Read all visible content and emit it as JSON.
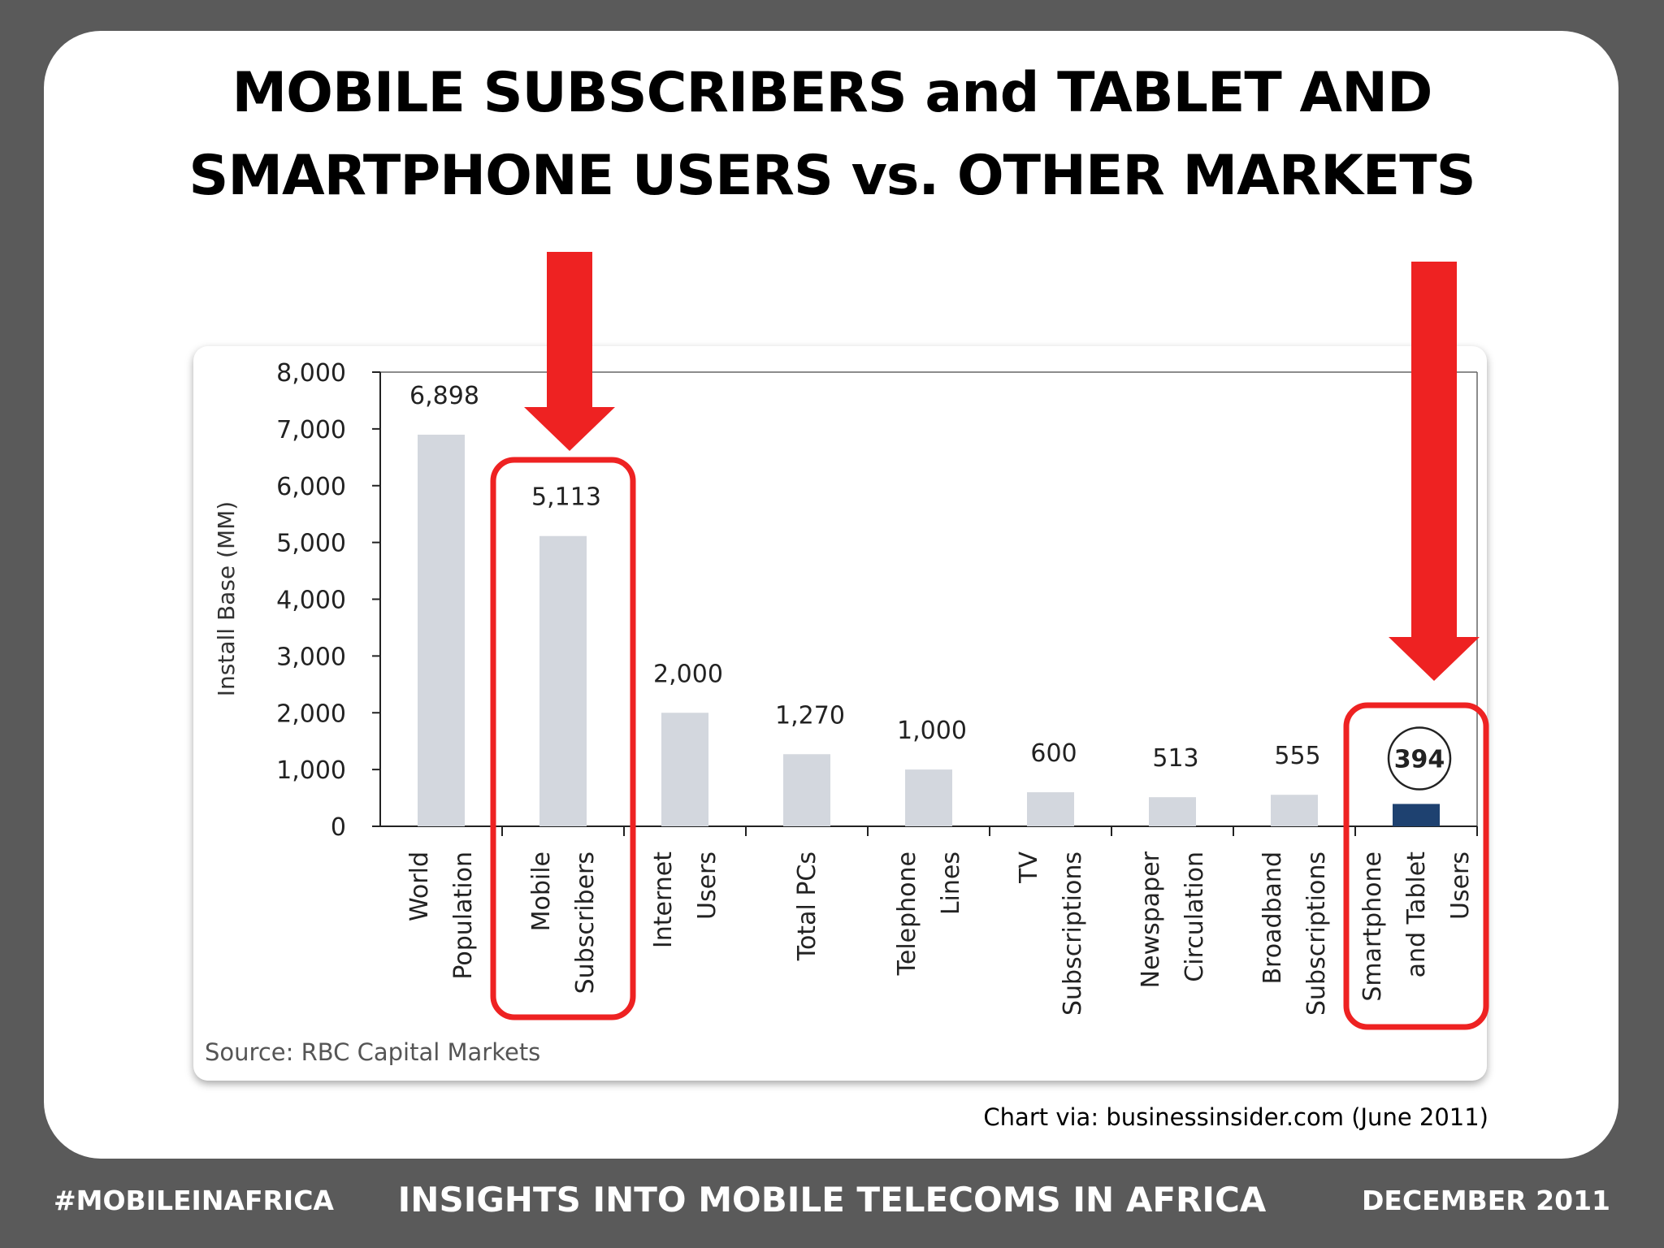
{
  "slide": {
    "title_line1": "MOBILE SUBSCRIBERS and TABLET AND",
    "title_line2": "SMARTPHONE USERS vs. OTHER MARKETS",
    "credit": "Chart via: businessinsider.com (June 2011)"
  },
  "footer": {
    "left": "#MOBILEINAFRICA",
    "center": "INSIGHTS INTO MOBILE TELECOMS IN AFRICA",
    "right": "DECEMBER 2011"
  },
  "chart_data": {
    "type": "bar",
    "ylabel": "Install Base (MM)",
    "ylim": [
      0,
      8000
    ],
    "yticks": [
      "0",
      "1,000",
      "2,000",
      "3,000",
      "4,000",
      "5,000",
      "6,000",
      "7,000",
      "8,000"
    ],
    "categories": [
      [
        "World",
        "Population"
      ],
      [
        "Mobile",
        "Subscribers"
      ],
      [
        "Internet",
        "Users"
      ],
      [
        "Total PCs"
      ],
      [
        "Telephone",
        "Lines"
      ],
      [
        "TV",
        "Subscriptions"
      ],
      [
        "Newspaper",
        "Circulation"
      ],
      [
        "Broadband",
        "Subscriptions"
      ],
      [
        "Smartphone",
        "and Tablet",
        "Users"
      ]
    ],
    "values": [
      6898,
      5113,
      2000,
      1270,
      1000,
      600,
      513,
      555,
      394
    ],
    "data_labels": [
      "6,898",
      "5,113",
      "2,000",
      "1,270",
      "1,000",
      "600",
      "513",
      "555",
      "394"
    ],
    "bar_color": "#d3d7de",
    "highlight_color": "#1e4170",
    "highlight_index": 8,
    "circled_index": 8,
    "boxed_indices": [
      1,
      8
    ],
    "arrow_indices": [
      1,
      8
    ],
    "annotation_color": "#ee2222",
    "source": "Source: RBC Capital Markets"
  }
}
